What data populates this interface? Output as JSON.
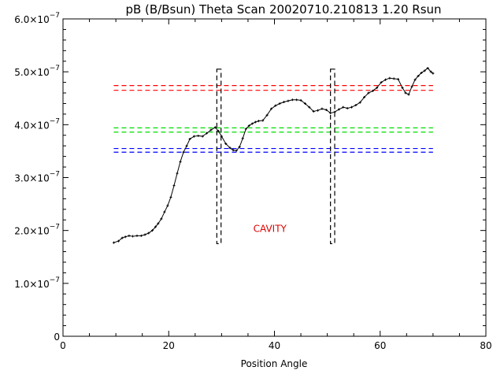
{
  "chart_data": {
    "type": "line",
    "title": "pB (B/Bsun) Theta Scan 20020710.210813 1.20 Rsun",
    "xlabel": "Position Angle",
    "ylabel": "",
    "xlim": [
      0,
      80
    ],
    "ylim": [
      0,
      6e-07
    ],
    "xticks": [
      {
        "value": 0,
        "label": "0"
      },
      {
        "value": 20,
        "label": "20"
      },
      {
        "value": 40,
        "label": "40"
      },
      {
        "value": 60,
        "label": "60"
      },
      {
        "value": 80,
        "label": "80"
      }
    ],
    "yticks": [
      {
        "value": 0,
        "mant": "0",
        "exp": ""
      },
      {
        "value": 1e-07,
        "mant": "1.0×10",
        "exp": "−7"
      },
      {
        "value": 2e-07,
        "mant": "2.0×10",
        "exp": "−7"
      },
      {
        "value": 3e-07,
        "mant": "3.0×10",
        "exp": "−7"
      },
      {
        "value": 4e-07,
        "mant": "4.0×10",
        "exp": "−7"
      },
      {
        "value": 5e-07,
        "mant": "5.0×10",
        "exp": "−7"
      },
      {
        "value": 6e-07,
        "mant": "6.0×10",
        "exp": "−7"
      }
    ],
    "grid": false,
    "series": [
      {
        "x": [
          9.6,
          10.5,
          11.2,
          11.8,
          12.5,
          13.2,
          14.0,
          14.8,
          15.5,
          16.2,
          16.9,
          17.5,
          18.0,
          18.6,
          19.2,
          19.8,
          20.4,
          21.0,
          21.6,
          22.2,
          22.8,
          23.4,
          24.0,
          24.8,
          25.6,
          26.4,
          27.2,
          28.0,
          28.8,
          29.4,
          30.0,
          30.8,
          31.6,
          32.2,
          32.8,
          33.4,
          34.0,
          34.6,
          35.2,
          35.8,
          36.4,
          37.0,
          37.8,
          38.6,
          39.4,
          40.2,
          41.0,
          41.8,
          42.6,
          43.4,
          44.2,
          45.0,
          45.8,
          46.6,
          47.4,
          48.2,
          49.0,
          49.8,
          50.6,
          51.4,
          52.2,
          53.0,
          53.8,
          54.6,
          55.4,
          56.2,
          57.0,
          57.8,
          58.6,
          59.4,
          60.2,
          61.0,
          61.8,
          62.6,
          63.4,
          64.2,
          64.8,
          65.4,
          66.0,
          66.6,
          67.2,
          67.8,
          68.4,
          69.0,
          69.6,
          70.0
        ],
        "y": [
          1.77e-07,
          1.8e-07,
          1.86e-07,
          1.88e-07,
          1.9e-07,
          1.89e-07,
          1.9e-07,
          1.9e-07,
          1.92e-07,
          1.95e-07,
          2e-07,
          2.07e-07,
          2.13e-07,
          2.22e-07,
          2.35e-07,
          2.47e-07,
          2.63e-07,
          2.85e-07,
          3.08e-07,
          3.3e-07,
          3.48e-07,
          3.6e-07,
          3.73e-07,
          3.78e-07,
          3.79e-07,
          3.78e-07,
          3.84e-07,
          3.9e-07,
          3.95e-07,
          3.88e-07,
          3.78e-07,
          3.64e-07,
          3.56e-07,
          3.52e-07,
          3.51e-07,
          3.58e-07,
          3.74e-07,
          3.92e-07,
          3.98e-07,
          4.02e-07,
          4.05e-07,
          4.07e-07,
          4.08e-07,
          4.18e-07,
          4.3e-07,
          4.36e-07,
          4.4e-07,
          4.43e-07,
          4.45e-07,
          4.47e-07,
          4.47e-07,
          4.46e-07,
          4.4e-07,
          4.33e-07,
          4.25e-07,
          4.27e-07,
          4.3e-07,
          4.28e-07,
          4.22e-07,
          4.24e-07,
          4.29e-07,
          4.33e-07,
          4.31e-07,
          4.33e-07,
          4.37e-07,
          4.42e-07,
          4.52e-07,
          4.6e-07,
          4.64e-07,
          4.7e-07,
          4.8e-07,
          4.85e-07,
          4.88e-07,
          4.87e-07,
          4.86e-07,
          4.7e-07,
          4.6e-07,
          4.57e-07,
          4.72e-07,
          4.85e-07,
          4.92e-07,
          4.98e-07,
          5.02e-07,
          5.07e-07,
          5e-07,
          4.97e-07
        ]
      }
    ],
    "hlines": [
      {
        "color": "#ff0000",
        "y": [
          4.74e-07,
          4.65e-07
        ]
      },
      {
        "color": "#00dd00",
        "y": [
          3.94e-07,
          3.86e-07
        ]
      },
      {
        "color": "#0000ff",
        "y": [
          3.55e-07,
          3.48e-07
        ]
      }
    ],
    "hline_xrange": [
      9.6,
      70.0
    ],
    "boxes": [
      {
        "x": [
          29.1,
          29.9
        ],
        "y": [
          1.75e-07,
          5.05e-07
        ]
      },
      {
        "x": [
          50.6,
          51.4
        ],
        "y": [
          1.75e-07,
          5.05e-07
        ]
      }
    ],
    "annotation": {
      "text": "CAVITY",
      "x": 36.0,
      "y": 1.97e-07,
      "color": "#dd0000"
    }
  }
}
